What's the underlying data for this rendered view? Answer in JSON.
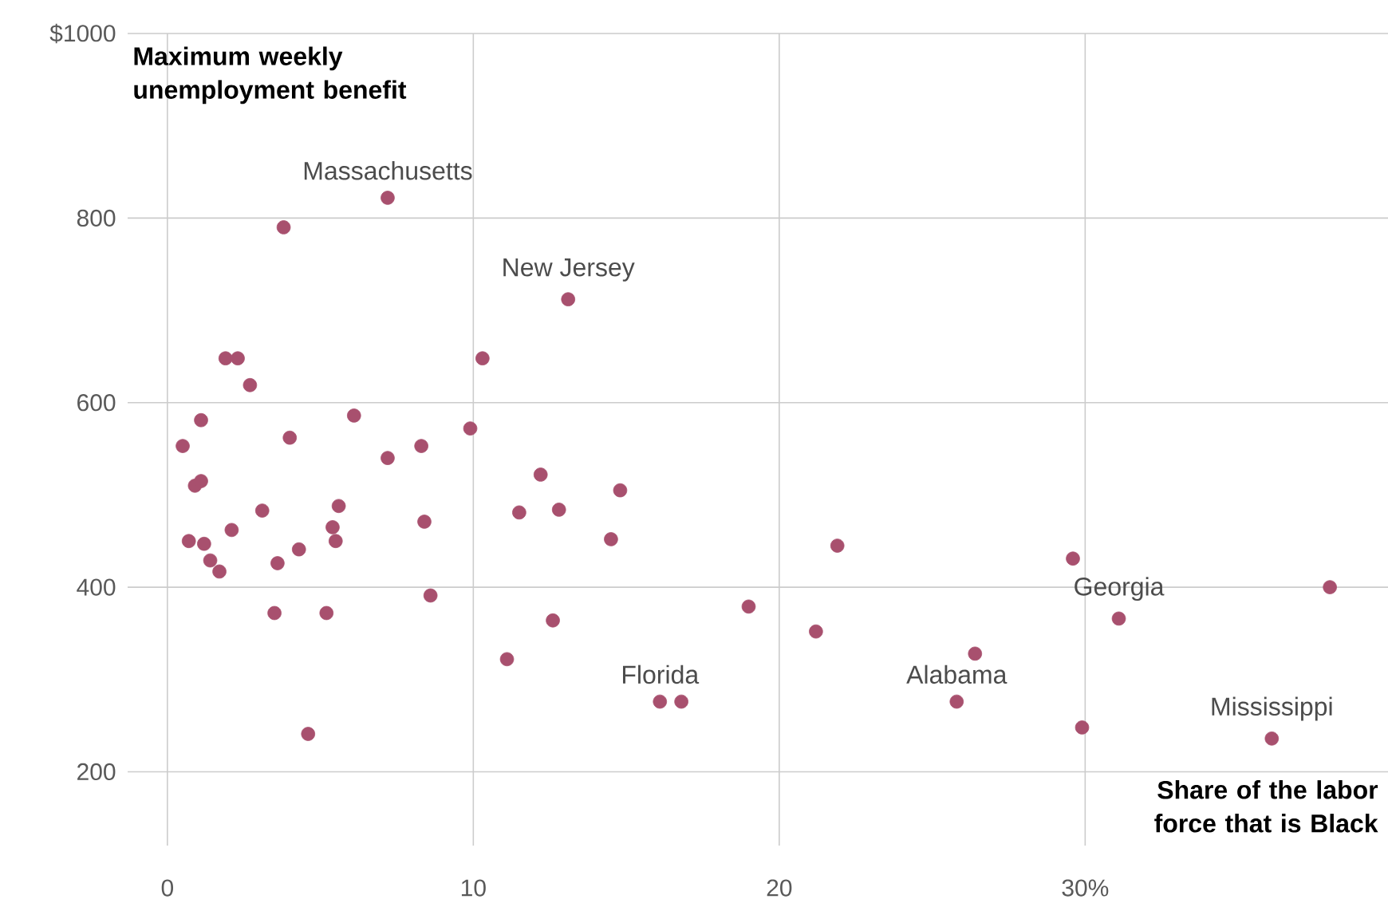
{
  "chart_data": {
    "type": "scatter",
    "xlabel": "Share of the labor force that is Black",
    "ylabel": "Maximum weekly unemployment benefit",
    "x": [
      0.5,
      0.7,
      0.9,
      1.1,
      1.1,
      1.2,
      1.4,
      1.7,
      1.9,
      2.3,
      2.1,
      2.7,
      3.1,
      3.8,
      3.6,
      3.5,
      4.0,
      4.3,
      4.6,
      5.2,
      5.4,
      5.5,
      5.6,
      6.1,
      7.2,
      7.2,
      8.3,
      8.4,
      8.6,
      9.9,
      10.3,
      11.1,
      11.5,
      12.2,
      12.6,
      12.8,
      13.1,
      14.5,
      14.8,
      16.1,
      16.8,
      19.0,
      21.2,
      21.9,
      25.8,
      26.4,
      29.6,
      29.9,
      31.1,
      36.1,
      38.0
    ],
    "values": [
      553,
      450,
      510,
      581,
      515,
      447,
      429,
      417,
      648,
      648,
      462,
      619,
      483,
      790,
      426,
      372,
      562,
      441,
      241,
      372,
      465,
      450,
      488,
      586,
      822,
      540,
      553,
      471,
      391,
      572,
      648,
      322,
      481,
      522,
      364,
      484,
      712,
      452,
      505,
      276,
      276,
      379,
      352,
      445,
      276,
      328,
      431,
      248,
      366,
      236,
      400
    ],
    "color": "#a8506e",
    "marker": "circle",
    "grid": true,
    "xlim": [
      -1.3,
      39.9
    ],
    "ylim": [
      120,
      1000
    ],
    "xticks": [
      0,
      10,
      20,
      {
        "value": 30,
        "label": "30%"
      }
    ],
    "yticks": [
      200,
      400,
      600,
      800,
      {
        "value": 1000,
        "label": "$1000"
      }
    ],
    "annotations": [
      {
        "text": "Massachusetts",
        "x": 7.2,
        "y": 822
      },
      {
        "text": "New Jersey",
        "x": 13.1,
        "y": 712
      },
      {
        "text": "Florida",
        "x": 16.1,
        "y": 276
      },
      {
        "text": "Alabama",
        "x": 25.8,
        "y": 276
      },
      {
        "text": "Georgia",
        "x": 31.1,
        "y": 366
      },
      {
        "text": "Mississippi",
        "x": 36.1,
        "y": 236
      }
    ]
  }
}
